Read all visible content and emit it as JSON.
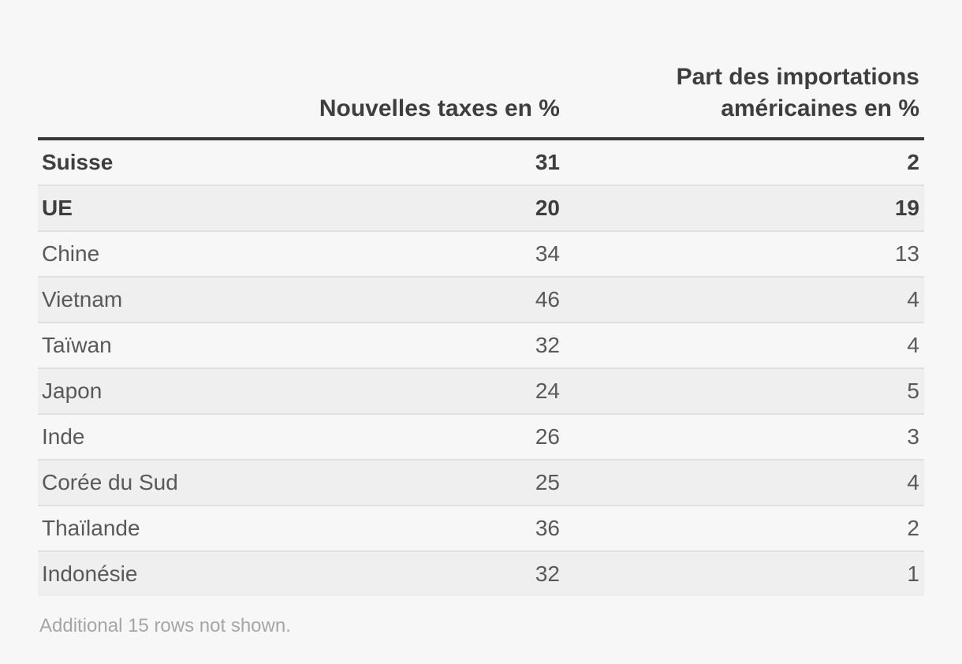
{
  "table": {
    "header": {
      "country": "",
      "taxes": "Nouvelles taxes en %",
      "imports_line1": "Part des importations",
      "imports_line2": "américaines en %"
    },
    "rows": [
      {
        "label": "Suisse",
        "taxes": "31",
        "share": "2",
        "emphasis": true
      },
      {
        "label": "UE",
        "taxes": "20",
        "share": "19",
        "emphasis": true
      },
      {
        "label": "Chine",
        "taxes": "34",
        "share": "13",
        "emphasis": false
      },
      {
        "label": "Vietnam",
        "taxes": "46",
        "share": "4",
        "emphasis": false
      },
      {
        "label": "Taïwan",
        "taxes": "32",
        "share": "4",
        "emphasis": false
      },
      {
        "label": "Japon",
        "taxes": "24",
        "share": "5",
        "emphasis": false
      },
      {
        "label": "Inde",
        "taxes": "26",
        "share": "3",
        "emphasis": false
      },
      {
        "label": "Corée du Sud",
        "taxes": "25",
        "share": "4",
        "emphasis": false
      },
      {
        "label": "Thaïlande",
        "taxes": "36",
        "share": "2",
        "emphasis": false
      },
      {
        "label": "Indonésie",
        "taxes": "32",
        "share": "1",
        "emphasis": false
      }
    ],
    "footnote": "Additional 15 rows not shown."
  },
  "chart_data": {
    "type": "table",
    "columns": [
      "",
      "Nouvelles taxes en %",
      "Part des importations américaines en %"
    ],
    "rows": [
      [
        "Suisse",
        31,
        2
      ],
      [
        "UE",
        20,
        19
      ],
      [
        "Chine",
        34,
        13
      ],
      [
        "Vietnam",
        46,
        4
      ],
      [
        "Taïwan",
        32,
        4
      ],
      [
        "Japon",
        24,
        5
      ],
      [
        "Inde",
        26,
        3
      ],
      [
        "Corée du Sud",
        25,
        4
      ],
      [
        "Thaïlande",
        36,
        2
      ],
      [
        "Indonésie",
        32,
        1
      ]
    ],
    "emphasized_rows": [
      "Suisse",
      "UE"
    ],
    "footnote": "Additional 15 rows not shown.",
    "layout": {
      "zebra_striping": true,
      "numeric_columns_right_aligned": true
    }
  },
  "colors": {
    "page_background": "#f7f7f7",
    "zebra_row": "#efefef",
    "row_separator": "#e0e0e0",
    "header_rule": "#383838",
    "emphasis_text": "#3e3e3e",
    "regular_text": "#595959",
    "footnote_text": "#a5a5a5"
  }
}
